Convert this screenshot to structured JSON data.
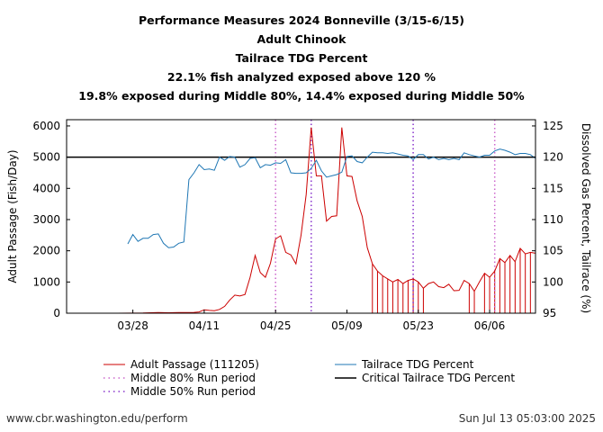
{
  "titles": [
    "Performance Measures 2024 Bonneville (3/15-6/15)",
    "Adult Chinook",
    "Tailrace TDG Percent",
    "22.1% fish analyzed exposed above 120 %",
    "19.8% exposed during Middle 80%, 14.4% exposed during Middle 50%"
  ],
  "footer": {
    "source": "www.cbr.washington.edu/perform",
    "timestamp": "Sun Jul 13 05:03:00 2025"
  },
  "chart_data": {
    "type": "line",
    "x_range_days": [
      0,
      92
    ],
    "x_ticks": [
      {
        "label": "03/28",
        "day": 13
      },
      {
        "label": "04/11",
        "day": 27
      },
      {
        "label": "04/25",
        "day": 41
      },
      {
        "label": "05/09",
        "day": 55
      },
      {
        "label": "05/23",
        "day": 69
      },
      {
        "label": "06/06",
        "day": 83
      }
    ],
    "y_left": {
      "label": "Adult Passage (Fish/Day)",
      "range": [
        0,
        6200
      ],
      "ticks": [
        0,
        1000,
        2000,
        3000,
        4000,
        5000,
        6000
      ]
    },
    "y_right": {
      "label": "Dissolved Gas Percent, Tailrace (%)",
      "range": [
        95,
        126
      ],
      "ticks": [
        95,
        100,
        105,
        110,
        115,
        120,
        125
      ]
    },
    "critical_tdg": 120,
    "middle80_days": [
      41,
      84
    ],
    "middle50_days": [
      48,
      68
    ],
    "legend": {
      "passage": "Adult Passage (111205)",
      "tdg": "Tailrace TDG Percent",
      "m80": "Middle 80% Run period",
      "critical": "Critical Tailrace TDG Percent",
      "m50": "Middle 50% Run period"
    },
    "colors": {
      "passage": "#cc0000",
      "tdg": "#1f77b4",
      "m80": "#cc66cc",
      "m50": "#8833cc",
      "critical": "#000000"
    },
    "passage": [
      [
        0,
        0
      ],
      [
        10,
        0
      ],
      [
        15,
        5
      ],
      [
        18,
        20
      ],
      [
        20,
        15
      ],
      [
        22,
        20
      ],
      [
        25,
        25
      ],
      [
        26,
        40
      ],
      [
        27,
        110
      ],
      [
        28,
        90
      ],
      [
        29,
        80
      ],
      [
        30,
        120
      ],
      [
        31,
        220
      ],
      [
        32,
        420
      ],
      [
        33,
        580
      ],
      [
        34,
        550
      ],
      [
        35,
        600
      ],
      [
        36,
        1150
      ],
      [
        37,
        1850
      ],
      [
        38,
        1300
      ],
      [
        39,
        1150
      ],
      [
        40,
        1600
      ],
      [
        41,
        2380
      ],
      [
        42,
        2480
      ],
      [
        43,
        1950
      ],
      [
        44,
        1870
      ],
      [
        45,
        1580
      ],
      [
        46,
        2500
      ],
      [
        47,
        3800
      ],
      [
        48,
        5950
      ],
      [
        49,
        4400
      ],
      [
        50,
        4400
      ],
      [
        51,
        2950
      ],
      [
        52,
        3100
      ],
      [
        53,
        3120
      ],
      [
        54,
        5950
      ],
      [
        55,
        4400
      ],
      [
        56,
        4380
      ],
      [
        57,
        3600
      ],
      [
        58,
        3100
      ],
      [
        59,
        2100
      ],
      [
        60,
        1580
      ],
      [
        61,
        1350
      ],
      [
        62,
        1200
      ],
      [
        63,
        1100
      ],
      [
        64,
        1000
      ],
      [
        65,
        1080
      ],
      [
        66,
        950
      ],
      [
        67,
        1050
      ],
      [
        68,
        1100
      ],
      [
        69,
        1000
      ],
      [
        70,
        800
      ],
      [
        71,
        950
      ],
      [
        72,
        1000
      ],
      [
        73,
        850
      ],
      [
        74,
        820
      ],
      [
        75,
        930
      ],
      [
        76,
        720
      ],
      [
        77,
        730
      ],
      [
        78,
        1050
      ],
      [
        79,
        950
      ],
      [
        80,
        700
      ],
      [
        81,
        1000
      ],
      [
        82,
        1280
      ],
      [
        83,
        1150
      ],
      [
        84,
        1350
      ],
      [
        85,
        1750
      ],
      [
        86,
        1620
      ],
      [
        87,
        1850
      ],
      [
        88,
        1650
      ],
      [
        89,
        2080
      ],
      [
        90,
        1900
      ],
      [
        91,
        1950
      ],
      [
        92,
        1920
      ]
    ],
    "tdg": [
      [
        12,
        106.1
      ],
      [
        13,
        107.6
      ],
      [
        14,
        106.5
      ],
      [
        15,
        107.0
      ],
      [
        16,
        107.0
      ],
      [
        17,
        107.6
      ],
      [
        18,
        107.7
      ],
      [
        19,
        106.2
      ],
      [
        20,
        105.5
      ],
      [
        21,
        105.6
      ],
      [
        22,
        106.2
      ],
      [
        23,
        106.4
      ],
      [
        24,
        116.4
      ],
      [
        25,
        117.5
      ],
      [
        26,
        118.8
      ],
      [
        27,
        118.0
      ],
      [
        28,
        118.1
      ],
      [
        29,
        117.9
      ],
      [
        30,
        120.0
      ],
      [
        31,
        119.5
      ],
      [
        32,
        120.1
      ],
      [
        33,
        120.0
      ],
      [
        34,
        118.4
      ],
      [
        35,
        118.8
      ],
      [
        36,
        119.8
      ],
      [
        37,
        119.9
      ],
      [
        38,
        118.3
      ],
      [
        39,
        118.8
      ],
      [
        40,
        118.7
      ],
      [
        41,
        119.1
      ],
      [
        42,
        119.0
      ],
      [
        43,
        119.6
      ],
      [
        44,
        117.5
      ],
      [
        45,
        117.4
      ],
      [
        46,
        117.4
      ],
      [
        47,
        117.5
      ],
      [
        48,
        118.2
      ],
      [
        49,
        119.5
      ],
      [
        50,
        117.8
      ],
      [
        51,
        116.8
      ],
      [
        52,
        117.0
      ],
      [
        53,
        117.2
      ],
      [
        54,
        117.6
      ],
      [
        55,
        120.1
      ],
      [
        56,
        120.2
      ],
      [
        57,
        119.3
      ],
      [
        58,
        119.1
      ],
      [
        59,
        120.0
      ],
      [
        60,
        120.8
      ],
      [
        61,
        120.7
      ],
      [
        62,
        120.7
      ],
      [
        63,
        120.6
      ],
      [
        64,
        120.7
      ],
      [
        65,
        120.5
      ],
      [
        66,
        120.3
      ],
      [
        67,
        120.2
      ],
      [
        68,
        119.6
      ],
      [
        69,
        120.4
      ],
      [
        70,
        120.4
      ],
      [
        71,
        119.7
      ],
      [
        72,
        120.0
      ],
      [
        73,
        119.6
      ],
      [
        74,
        119.8
      ],
      [
        75,
        119.6
      ],
      [
        76,
        119.8
      ],
      [
        77,
        119.6
      ],
      [
        78,
        120.7
      ],
      [
        79,
        120.4
      ],
      [
        80,
        120.2
      ],
      [
        81,
        120.0
      ],
      [
        82,
        120.3
      ],
      [
        83,
        120.3
      ],
      [
        84,
        121.0
      ],
      [
        85,
        121.3
      ],
      [
        86,
        121.1
      ],
      [
        87,
        120.8
      ],
      [
        88,
        120.4
      ],
      [
        89,
        120.6
      ],
      [
        90,
        120.6
      ],
      [
        91,
        120.4
      ],
      [
        92,
        119.8
      ]
    ],
    "exposed_days": [
      60,
      61,
      62,
      63,
      64,
      65,
      66,
      67,
      68,
      69,
      70,
      79,
      80,
      82,
      83,
      84,
      85,
      86,
      87,
      88,
      89,
      90,
      91
    ]
  }
}
